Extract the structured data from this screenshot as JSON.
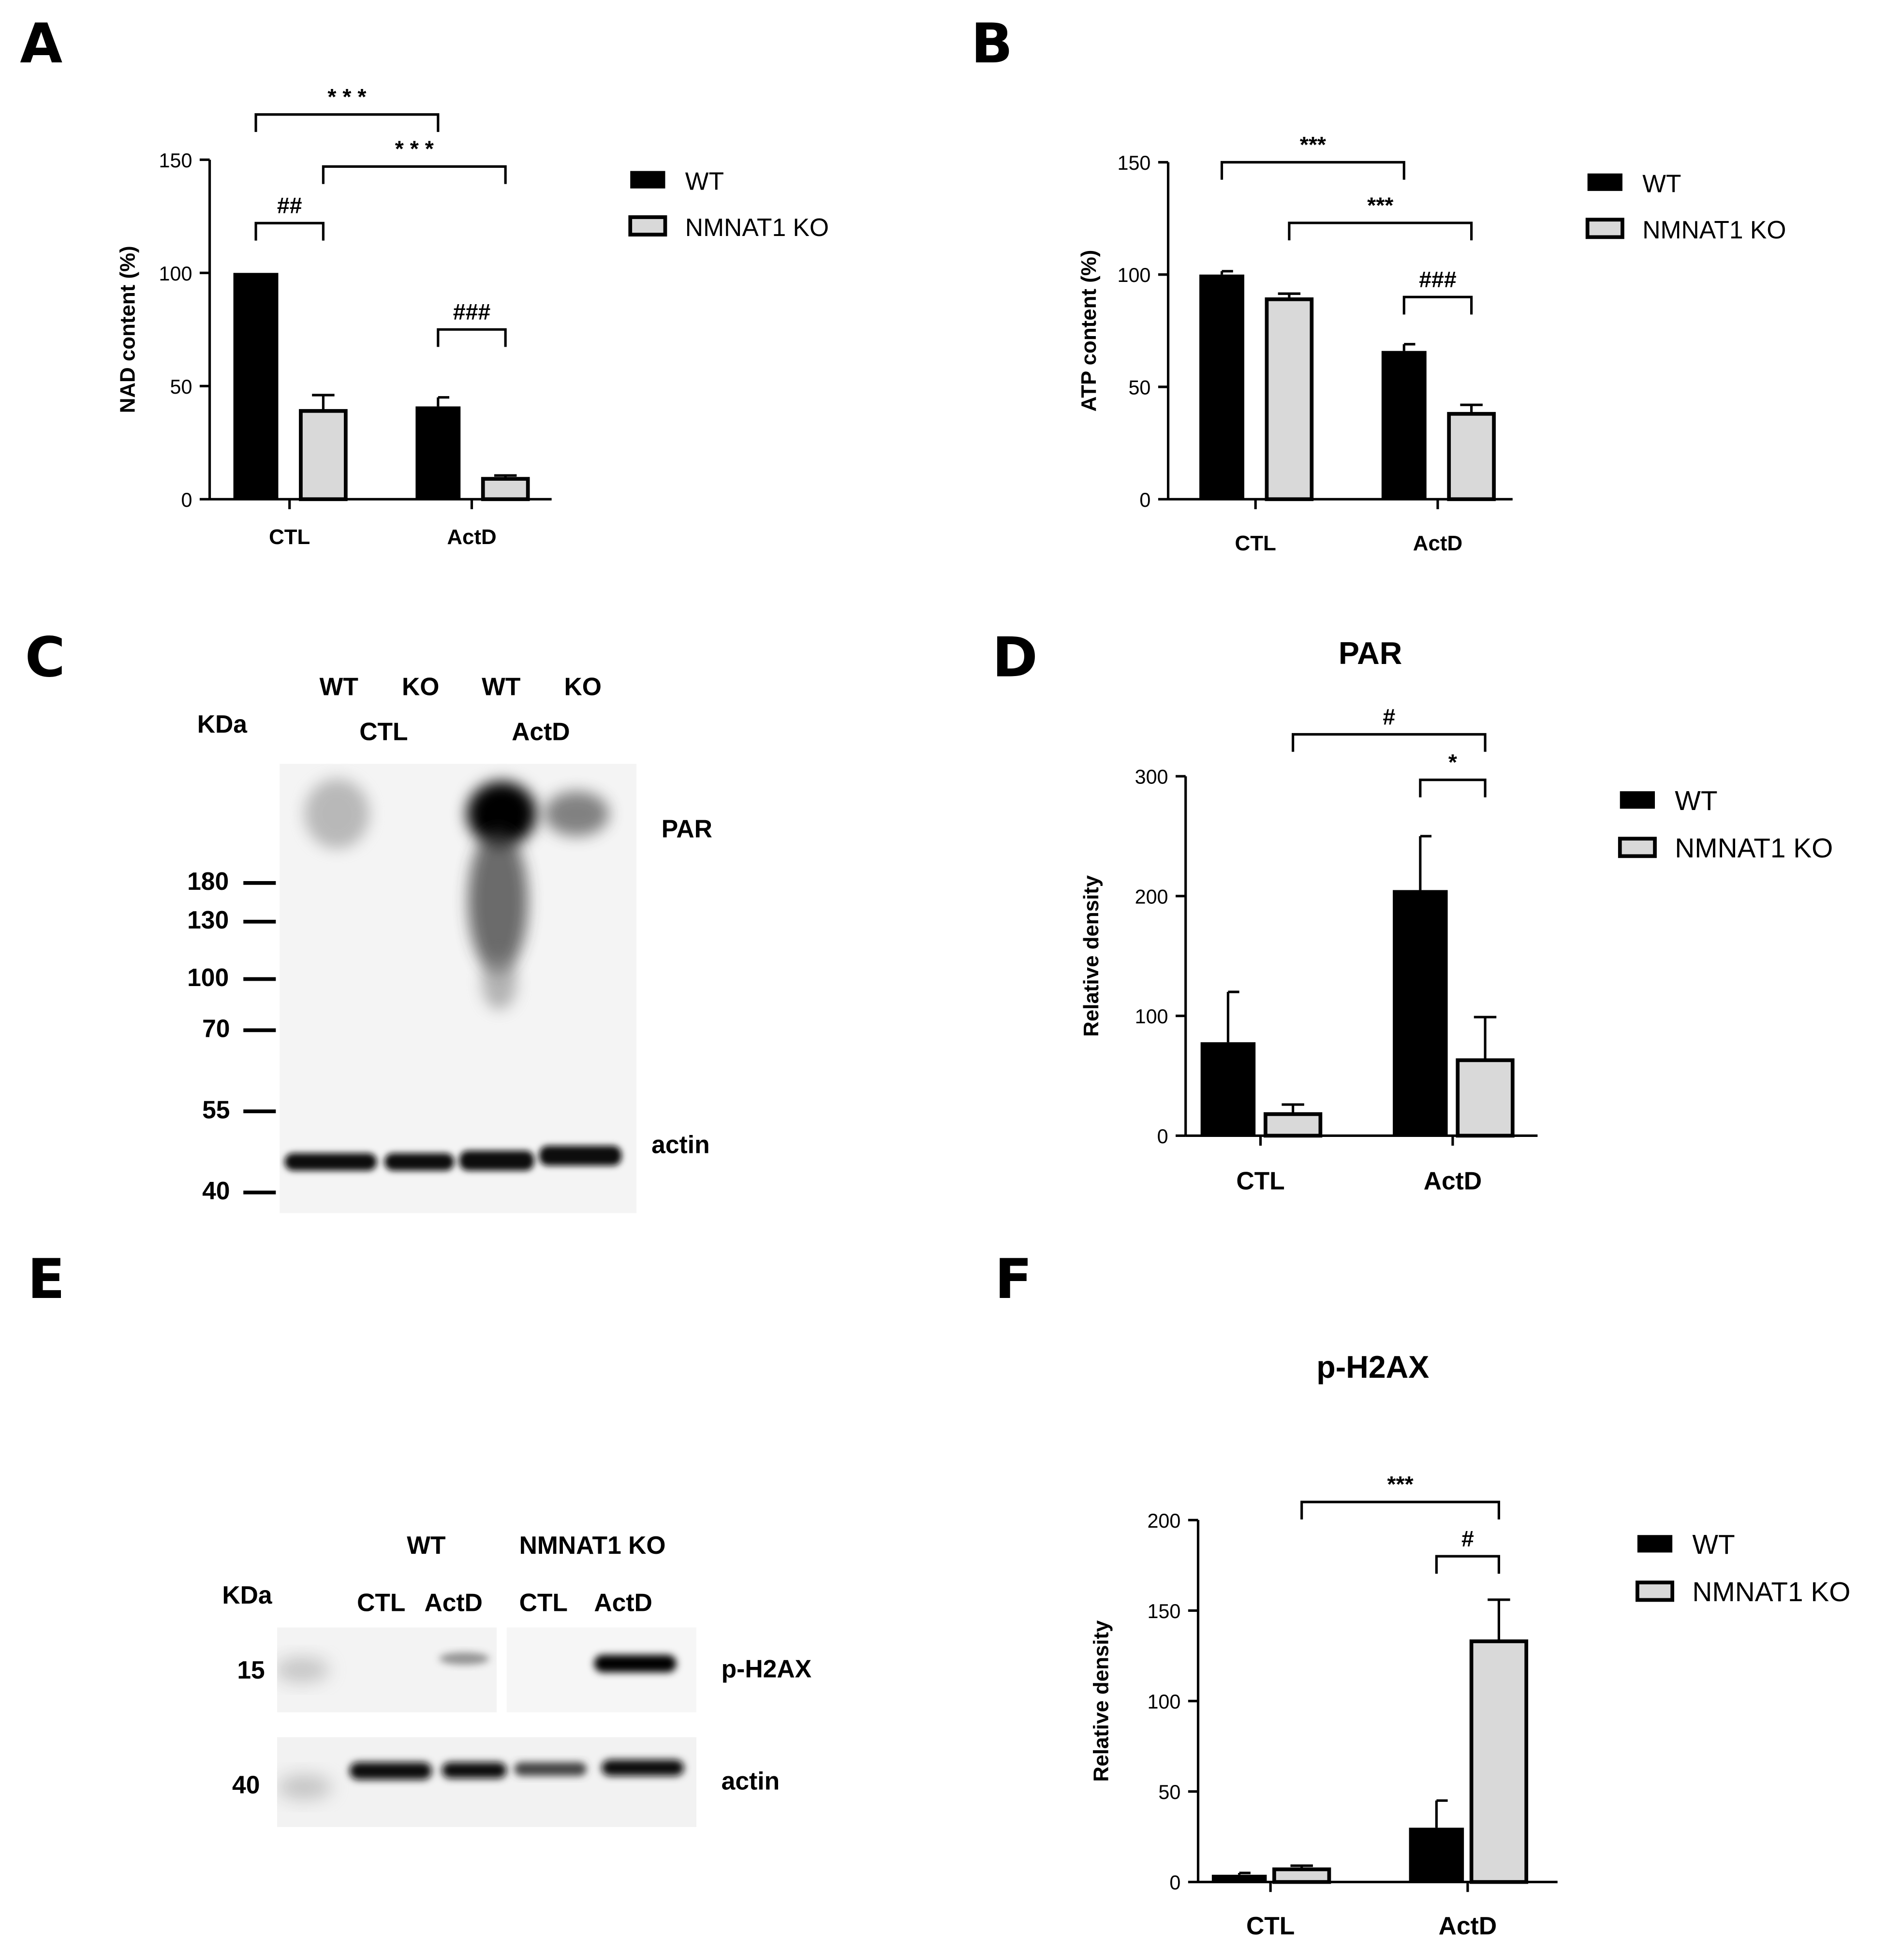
{
  "panel_labels": [
    "A",
    "B",
    "C",
    "D",
    "E",
    "F"
  ],
  "legend": {
    "wt": "WT",
    "ko": "NMNAT1 KO"
  },
  "colors": {
    "wt": "#000000",
    "ko": "#d9d9d9",
    "blot_bg": "#f4f4f4",
    "band": "#111111"
  },
  "chart_data": [
    {
      "id": "A",
      "type": "bar",
      "title": "",
      "ylabel": "NAD content (%)",
      "xlabel": "",
      "categories": [
        "CTL",
        "ActD"
      ],
      "ylim": [
        0,
        150
      ],
      "yticks": [
        0,
        50,
        100,
        150
      ],
      "series": [
        {
          "name": "WT",
          "values": [
            100,
            41
          ],
          "errors": [
            0,
            4
          ]
        },
        {
          "name": "NMNAT1 KO",
          "values": [
            39,
            9
          ],
          "errors": [
            7,
            1.5
          ]
        }
      ],
      "annotations": [
        {
          "text": "* * *",
          "from": [
            0,
            0
          ],
          "to": [
            1,
            0
          ],
          "level": 170
        },
        {
          "text": "* * *",
          "from": [
            0,
            1
          ],
          "to": [
            1,
            1
          ],
          "level": 147
        },
        {
          "text": "##",
          "from": [
            0,
            0
          ],
          "to": [
            0,
            1
          ],
          "level": 122
        },
        {
          "text": "###",
          "from": [
            1,
            0
          ],
          "to": [
            1,
            1
          ],
          "level": 75
        }
      ]
    },
    {
      "id": "B",
      "type": "bar",
      "title": "",
      "ylabel": "ATP content (%)",
      "xlabel": "",
      "categories": [
        "CTL",
        "ActD"
      ],
      "ylim": [
        0,
        150
      ],
      "yticks": [
        0,
        50,
        100,
        150
      ],
      "series": [
        {
          "name": "WT",
          "values": [
            100,
            66
          ],
          "errors": [
            1.5,
            3
          ]
        },
        {
          "name": "NMNAT1 KO",
          "values": [
            89,
            38
          ],
          "errors": [
            2.5,
            4
          ]
        }
      ],
      "annotations": [
        {
          "text": "***",
          "from": [
            0,
            0
          ],
          "to": [
            1,
            0
          ],
          "level": 150
        },
        {
          "text": "***",
          "from": [
            0,
            1
          ],
          "to": [
            1,
            1
          ],
          "level": 123
        },
        {
          "text": "###",
          "from": [
            1,
            0
          ],
          "to": [
            1,
            1
          ],
          "level": 90
        }
      ]
    },
    {
      "id": "D",
      "type": "bar",
      "title": "PAR",
      "ylabel": "Relative density",
      "xlabel": "",
      "categories": [
        "CTL",
        "ActD"
      ],
      "ylim": [
        0,
        300
      ],
      "yticks": [
        0,
        100,
        200,
        300
      ],
      "series": [
        {
          "name": "WT",
          "values": [
            78,
            205
          ],
          "errors": [
            42,
            45
          ]
        },
        {
          "name": "NMNAT1 KO",
          "values": [
            18,
            63
          ],
          "errors": [
            8,
            36
          ]
        }
      ],
      "annotations": [
        {
          "text": "#",
          "from": [
            0,
            1
          ],
          "to": [
            1,
            1
          ],
          "level": 335
        },
        {
          "text": "*",
          "from": [
            1,
            0
          ],
          "to": [
            1,
            1
          ],
          "level": 297
        }
      ]
    },
    {
      "id": "F",
      "type": "bar",
      "title": "p-H2AX",
      "ylabel": "Relative density",
      "xlabel": "",
      "categories": [
        "CTL",
        "ActD"
      ],
      "ylim": [
        0,
        200
      ],
      "yticks": [
        0,
        50,
        100,
        150,
        200
      ],
      "series": [
        {
          "name": "WT",
          "values": [
            4,
            30
          ],
          "errors": [
            1,
            15
          ]
        },
        {
          "name": "NMNAT1 KO",
          "values": [
            7,
            133
          ],
          "errors": [
            2,
            23
          ]
        }
      ],
      "annotations": [
        {
          "text": "***",
          "from": [
            0,
            1
          ],
          "to": [
            1,
            1
          ],
          "level": 210
        },
        {
          "text": "#",
          "from": [
            1,
            0
          ],
          "to": [
            1,
            1
          ],
          "level": 180
        }
      ]
    }
  ],
  "blot_c": {
    "kda": "KDa",
    "lanes": [
      "WT",
      "KO",
      "WT",
      "KO"
    ],
    "groups": [
      "CTL",
      "ActD"
    ],
    "markers": [
      "180",
      "130",
      "100",
      "70",
      "55",
      "40"
    ],
    "bands": [
      "PAR",
      "actin"
    ]
  },
  "blot_e": {
    "kda": "KDa",
    "groups": [
      "WT",
      "NMNAT1 KO"
    ],
    "lanes": [
      "CTL",
      "ActD",
      "CTL",
      "ActD"
    ],
    "markers": [
      "15",
      "40"
    ],
    "bands": [
      "p-H2AX",
      "actin"
    ]
  }
}
